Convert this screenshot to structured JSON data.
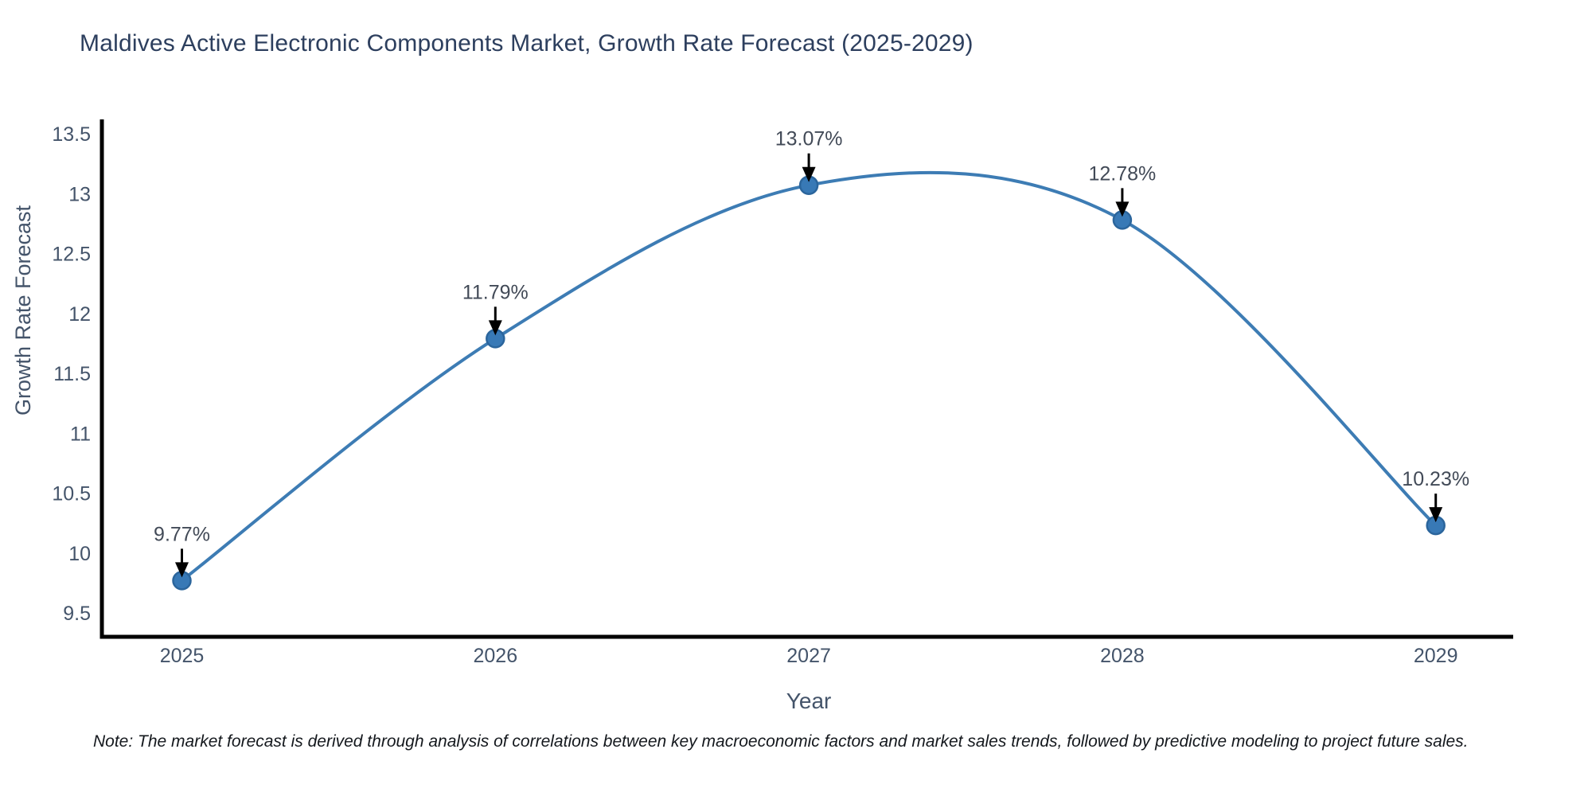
{
  "page": {
    "title": "Maldives Active Electronic Components Market, Growth Rate Forecast (2025-2029)",
    "note": "Note: The market forecast is derived through analysis of correlations between key macroeconomic factors and market sales trends, followed by predictive modeling to project future sales."
  },
  "chart_data": {
    "type": "line",
    "title": "Maldives Active Electronic Components Market, Growth Rate Forecast (2025-2029)",
    "x": [
      2025,
      2026,
      2027,
      2028,
      2029
    ],
    "series": [
      {
        "name": "Growth Rate Forecast",
        "values": [
          9.77,
          11.79,
          13.07,
          12.78,
          10.23
        ]
      }
    ],
    "point_labels": [
      "9.77%",
      "11.79%",
      "13.07%",
      "12.78%",
      "10.23%"
    ],
    "xlabel": "Year",
    "ylabel": "Growth Rate Forecast",
    "xtick_labels": [
      "2025",
      "2026",
      "2027",
      "2028",
      "2029"
    ],
    "ytick_values": [
      9.5,
      10,
      10.5,
      11,
      11.5,
      12,
      12.5,
      13,
      13.5
    ],
    "ytick_labels": [
      "9.5",
      "10",
      "10.5",
      "11",
      "11.5",
      "12",
      "12.5",
      "13",
      "13.5"
    ],
    "ylim": [
      9.3,
      13.62
    ],
    "line_shape": "spline",
    "grid": false,
    "legend_position": "none",
    "annotation_arrows": true,
    "colors": {
      "line": "#3d7cb4",
      "marker_fill": "#3879b6",
      "marker_edge": "#2b659c",
      "axis": "#000000",
      "title": "#2d3f5e",
      "tick": "#44546a",
      "axis_label": "#44546a",
      "annotation": "#424a57",
      "arrow": "#000000",
      "note": "#14181d"
    }
  }
}
